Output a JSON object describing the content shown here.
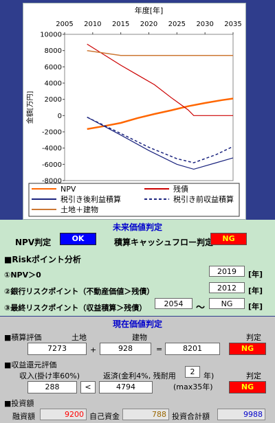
{
  "chart_data": {
    "type": "line",
    "title": "",
    "xlabel": "年度[年]",
    "ylabel": "金額[万円]",
    "xlim": [
      2005,
      2035
    ],
    "ylim": [
      -8000,
      10000
    ],
    "xticks": [
      "2005",
      "2010",
      "2015",
      "2020",
      "2025",
      "2030",
      "2035"
    ],
    "yticks": [
      "10000",
      "8000",
      "6000",
      "4000",
      "2000",
      "0",
      "-2000",
      "-4000",
      "-6000",
      "-8000"
    ],
    "series": [
      {
        "name": "NPV",
        "color": "#ff6600",
        "width": 2.5,
        "dash": "",
        "x": [
          2009,
          2012,
          2015,
          2018,
          2021,
          2024,
          2027,
          2030,
          2033,
          2035
        ],
        "y": [
          -1650,
          -1300,
          -900,
          -300,
          200,
          650,
          1150,
          1550,
          1900,
          2100
        ]
      },
      {
        "name": "残債",
        "color": "#cc0000",
        "width": 1.2,
        "dash": "",
        "x": [
          2009,
          2012,
          2015,
          2018,
          2021,
          2024,
          2027,
          2028,
          2035
        ],
        "y": [
          8800,
          7500,
          6200,
          5000,
          3800,
          2200,
          700,
          0,
          0
        ]
      },
      {
        "name": "税引き後利益積算",
        "color": "#1a237e",
        "width": 1.2,
        "dash": "",
        "x": [
          2009,
          2015,
          2020,
          2025,
          2028,
          2032,
          2035
        ],
        "y": [
          -200,
          -2400,
          -4300,
          -6000,
          -6600,
          -5800,
          -5200
        ]
      },
      {
        "name": "税引き前収益積算",
        "color": "#1a237e",
        "width": 1.5,
        "dash": "4,3",
        "x": [
          2009,
          2015,
          2020,
          2025,
          2028,
          2032,
          2035
        ],
        "y": [
          -200,
          -2200,
          -3900,
          -5300,
          -5800,
          -4800,
          -3800
        ]
      },
      {
        "name": "土地＋建物",
        "color": "#cc7733",
        "width": 1.5,
        "dash": "",
        "x": [
          2009,
          2015,
          2035
        ],
        "y": [
          8000,
          7400,
          7400
        ]
      }
    ]
  },
  "legend": [
    {
      "label": "NPV",
      "color": "#ff6600",
      "dash": ""
    },
    {
      "label": "残債",
      "color": "#cc0000",
      "dash": ""
    },
    {
      "label": "税引き後利益積算",
      "color": "#1a237e",
      "dash": ""
    },
    {
      "label": "税引き前収益積算",
      "color": "#1a237e",
      "dash": "4,3"
    },
    {
      "label": "土地＋建物",
      "color": "#cc7733",
      "dash": ""
    }
  ],
  "future": {
    "header": "未来価値判定",
    "npv_label": "NPV判定",
    "npv_result": "OK",
    "cash_label": "積算キャッシュフロー判定",
    "cash_result": "NG",
    "risk_title": "■Riskポイント分析",
    "r1_label": "①NPV＞0",
    "r1_value": "2019",
    "r1_unit": "[年]",
    "r2_label": "②銀行リスクポイント（不動産価値＞残債）",
    "r2_value": "2012",
    "r2_unit": "[年]",
    "r3_label": "③最終リスクポイント（収益積算＞残債）",
    "r3_value": "2054",
    "r3_tilde": "～",
    "r3_value2": "NG",
    "r3_unit": "[年]"
  },
  "present": {
    "header": "現在価値判定",
    "sekisan_title": "■積算評価",
    "land_label": "土地",
    "building_label": "建物",
    "judge_label": "判定",
    "land_value": "7273",
    "plus": "+",
    "building_value": "928",
    "equals": "=",
    "total_value": "8201",
    "sekisan_result": "NG",
    "income_title": "■収益還元評価",
    "income_label": "収入(掛け率60%)",
    "repay_label": "返済(金利4%, 残耐用",
    "years_value": "2",
    "years_unit": "年)",
    "max_note": "(max35年)",
    "judge_label2": "判定",
    "income_value": "288",
    "lt": "<",
    "repay_value": "4794",
    "income_result": "NG",
    "invest_title": "■投資額",
    "loan_label": "融資額",
    "loan_value": "9200",
    "own_label": "自己資金",
    "own_value": "788",
    "total_label": "投資合計額",
    "total_invest": "9988"
  }
}
